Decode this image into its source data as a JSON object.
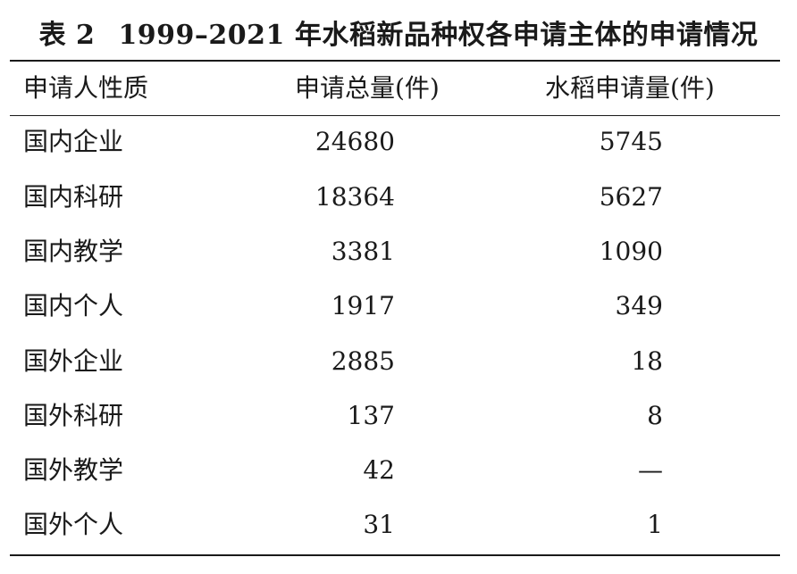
{
  "caption": {
    "table_no": "表 2",
    "title": "1999–2021 年水稻新品种权各申请主体的申请情况"
  },
  "headers": {
    "col1": "申请人性质",
    "col2": "申请总量(件)",
    "col3": "水稻申请量(件)"
  },
  "rows": [
    {
      "type": "国内企业",
      "total": "24680",
      "rice": "5745"
    },
    {
      "type": "国内科研",
      "total": "18364",
      "rice": "5627"
    },
    {
      "type": "国内教学",
      "total": "3381",
      "rice": "1090"
    },
    {
      "type": "国内个人",
      "total": "1917",
      "rice": "349"
    },
    {
      "type": "国外企业",
      "total": "2885",
      "rice": "18"
    },
    {
      "type": "国外科研",
      "total": "137",
      "rice": "8"
    },
    {
      "type": "国外教学",
      "total": "42",
      "rice": "—"
    },
    {
      "type": "国外个人",
      "total": "31",
      "rice": "1"
    }
  ]
}
